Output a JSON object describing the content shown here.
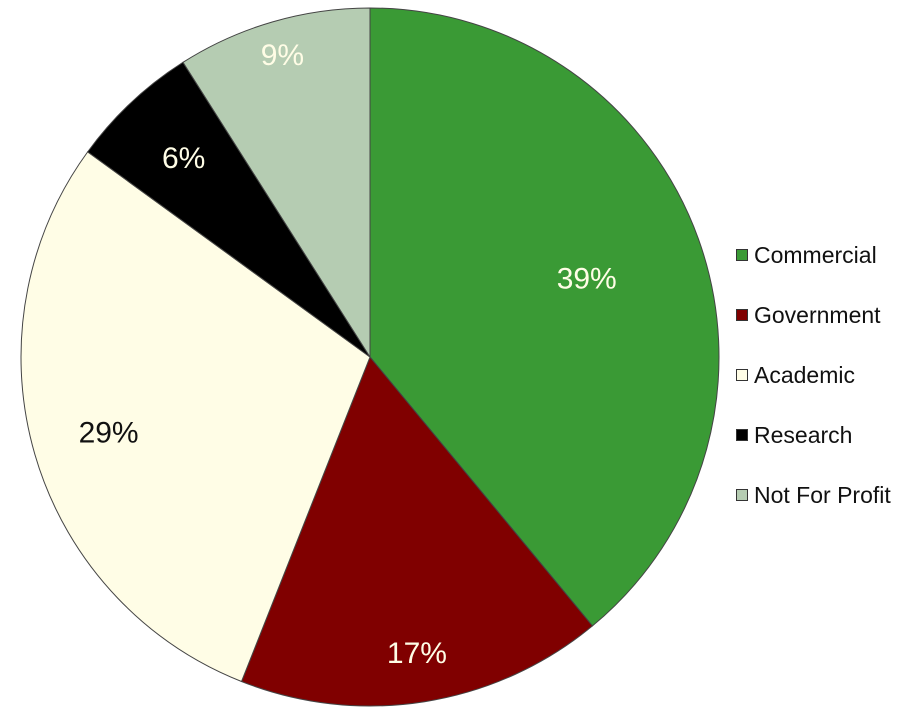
{
  "chart_data": {
    "type": "pie",
    "categories": [
      "Commercial",
      "Government",
      "Academic",
      "Research",
      "Not For Profit"
    ],
    "values": [
      39,
      17,
      29,
      6,
      9
    ],
    "value_labels": [
      "39%",
      "17%",
      "29%",
      "6%",
      "9%"
    ],
    "colors": [
      "#3a9a35",
      "#800000",
      "#fffde6",
      "#000000",
      "#b5ccb2"
    ],
    "label_colors": [
      "#fffde6",
      "#fffde6",
      "#111111",
      "#fffde6",
      "#fffde6"
    ],
    "start_angle_deg": 0,
    "direction": "clockwise",
    "legend_position": "right"
  },
  "legend": {
    "items": [
      {
        "label": "Commercial"
      },
      {
        "label": "Government"
      },
      {
        "label": "Academic"
      },
      {
        "label": "Research"
      },
      {
        "label": "Not For Profit"
      }
    ]
  }
}
